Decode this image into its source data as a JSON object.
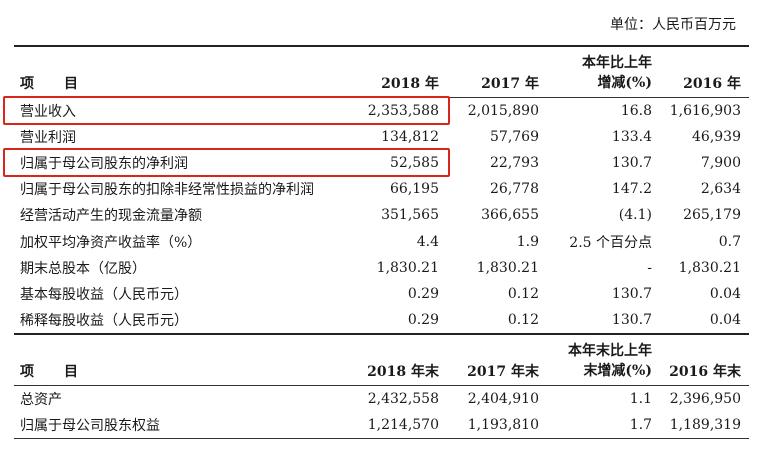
{
  "unit_label": "单位：人民币百万元",
  "table1": {
    "headers": {
      "item_a": "项",
      "item_b": "目",
      "y2018": "2018 年",
      "y2017": "2017 年",
      "change_l1": "本年比上年",
      "change_l2": "增减(%)",
      "y2016": "2016 年"
    },
    "rows": [
      {
        "label": "营业收入",
        "v2018": "2,353,588",
        "v2017": "2,015,890",
        "chg": "16.8",
        "v2016": "1,616,903",
        "highlighted": true
      },
      {
        "label": "营业利润",
        "v2018": "134,812",
        "v2017": "57,769",
        "chg": "133.4",
        "v2016": "46,939"
      },
      {
        "label": "归属于母公司股东的净利润",
        "v2018": "52,585",
        "v2017": "22,793",
        "chg": "130.7",
        "v2016": "7,900",
        "highlighted": true
      },
      {
        "label": "归属于母公司股东的扣除非经常性损益的净利润",
        "v2018": "66,195",
        "v2017": "26,778",
        "chg": "147.2",
        "v2016": "2,634"
      },
      {
        "label": "经营活动产生的现金流量净额",
        "v2018": "351,565",
        "v2017": "366,655",
        "chg": "(4.1)",
        "v2016": "265,179"
      },
      {
        "label": "加权平均净资产收益率（%）",
        "v2018": "4.4",
        "v2017": "1.9",
        "chg": "2.5 个百分点",
        "v2016": "0.7"
      },
      {
        "label": "期末总股本（亿股）",
        "v2018": "1,830.21",
        "v2017": "1,830.21",
        "chg": "-",
        "v2016": "1,830.21"
      },
      {
        "label": "基本每股收益（人民币元）",
        "v2018": "0.29",
        "v2017": "0.12",
        "chg": "130.7",
        "v2016": "0.04"
      },
      {
        "label": "稀释每股收益（人民币元）",
        "v2018": "0.29",
        "v2017": "0.12",
        "chg": "130.7",
        "v2016": "0.04"
      }
    ]
  },
  "table2": {
    "headers": {
      "item_a": "项",
      "item_b": "目",
      "y2018": "2018 年末",
      "y2017": "2017 年末",
      "change_l1": "本年末比上年",
      "change_l2": "末增减(%)",
      "y2016": "2016 年末"
    },
    "rows": [
      {
        "label": "总资产",
        "v2018": "2,432,558",
        "v2017": "2,404,910",
        "chg": "1.1",
        "v2016": "2,396,950"
      },
      {
        "label": "归属于母公司股东权益",
        "v2018": "1,214,570",
        "v2017": "1,193,810",
        "chg": "1.7",
        "v2016": "1,189,319"
      }
    ]
  },
  "colors": {
    "highlight_border": "#d9261c",
    "rule": "#222222",
    "text": "#1a1a1a"
  }
}
